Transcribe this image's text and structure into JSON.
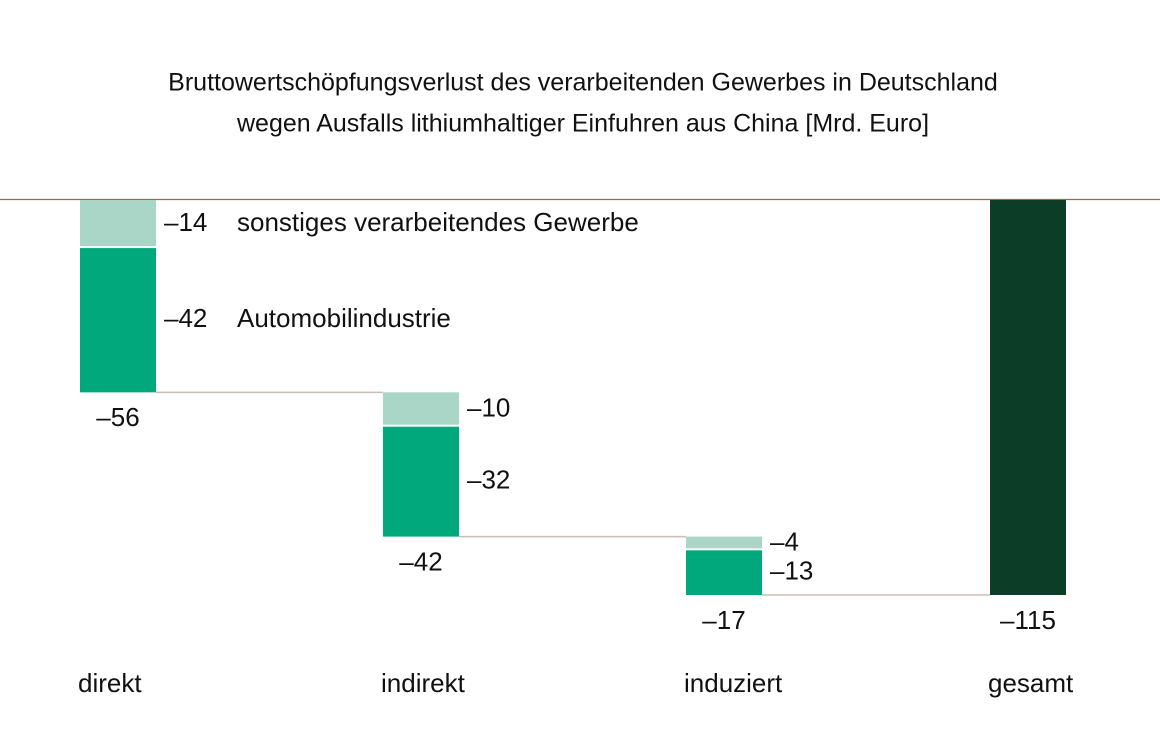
{
  "chart_data": {
    "type": "waterfall",
    "title": [
      "Bruttowertschöpfungsverlust des verarbeitenden Gewerbes in Deutschland",
      "wegen Ausfalls lithiumhaltiger Einfuhren aus China [Mrd. Euro]"
    ],
    "categories": [
      "direkt",
      "indirekt",
      "induziert",
      "gesamt"
    ],
    "series": [
      {
        "name": "sonstiges verarbeitendes Gewerbe",
        "color": "#a9d6c6",
        "values": [
          -14,
          -10,
          -4,
          null
        ],
        "value_labels": [
          "–14",
          "–10",
          "–4",
          null
        ]
      },
      {
        "name": "Automobilindustrie",
        "color": "#00a87b",
        "values": [
          -42,
          -32,
          -13,
          null
        ],
        "value_labels": [
          "–42",
          "–32",
          "–13",
          null
        ]
      }
    ],
    "totals": {
      "color": "#0b3d27",
      "values": [
        -56,
        -42,
        -17,
        -115
      ],
      "value_labels": [
        "–56",
        "–42",
        "–17",
        "–115"
      ]
    }
  }
}
